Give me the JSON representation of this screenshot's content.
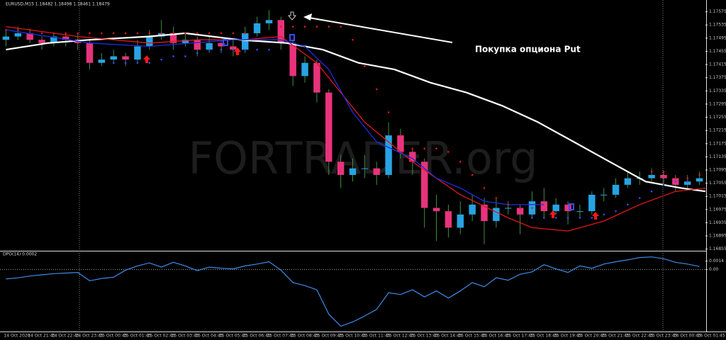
{
  "chart_data": [
    {
      "type": "candlestick",
      "title": "EURUSD,M15  1.18482 1.18498 1.18461 1.18479",
      "watermark": "FORTRADER.org",
      "annotation": "Покупка опциона Put",
      "categories": [
        "14 Oct 2020",
        null,
        "14 Oct 21:45",
        null,
        "14 Oct 22:45",
        null,
        "14 Oct 23:45",
        null,
        "15 Oct 00:45",
        null,
        "15 Oct 01:45",
        null,
        "15 Oct 02:45",
        null,
        "15 Oct 03:45",
        null,
        "15 Oct 04:45",
        null,
        "15 Oct 05:45",
        null,
        "15 Oct 06:45",
        null,
        "15 Oct 07:45",
        null,
        "15 Oct 08:45",
        null,
        "15 Oct 09:45",
        null,
        "15 Oct 10:45",
        null,
        "15 Oct 11:45",
        null,
        "15 Oct 12:45",
        null,
        "15 Oct 13:45",
        null,
        "15 Oct 14:45",
        null,
        "15 Oct 15:45",
        null,
        "15 Oct 16:45",
        null,
        "15 Oct 17:45",
        null,
        "15 Oct 18:45",
        null,
        "15 Oct 19:45",
        null,
        "15 Oct 20:45",
        null,
        "15 Oct 21:45",
        null,
        "15 Oct 22:45",
        null,
        "15 Oct 23:45",
        null,
        "16 Oct 00:45",
        null,
        "16 Oct 01:45"
      ],
      "open": [
        1.1749,
        1.175,
        1.1751,
        1.1749,
        1.1748,
        1.175,
        1.1749,
        1.1748,
        1.1742,
        1.1743,
        1.1744,
        1.1743,
        1.1747,
        1.175,
        1.1751,
        1.1748,
        1.1749,
        1.1746,
        1.1748,
        1.1747,
        1.1746,
        1.1751,
        1.1754,
        1.1755,
        1.1748,
        1.1738,
        1.1742,
        1.1733,
        1.1712,
        1.1708,
        1.171,
        1.171,
        1.1708,
        1.172,
        1.1715,
        1.1712,
        1.1698,
        1.1697,
        1.1692,
        1.1696,
        1.1699,
        1.1694,
        1.1698,
        1.1698,
        1.1696,
        1.17,
        1.1697,
        1.1699,
        1.1697,
        1.1697,
        1.1702,
        1.1702,
        1.1705,
        1.1707,
        1.1707,
        1.1708,
        1.1707,
        1.1705,
        1.1706
      ],
      "high": [
        1.1752,
        1.1753,
        1.1752,
        1.175,
        1.1751,
        1.1751,
        1.1751,
        1.1749,
        1.1745,
        1.1746,
        1.1745,
        1.1749,
        1.1752,
        1.1755,
        1.1753,
        1.1751,
        1.175,
        1.175,
        1.1749,
        1.1749,
        1.1753,
        1.1756,
        1.1758,
        1.1756,
        1.1749,
        1.1744,
        1.1743,
        1.1734,
        1.1714,
        1.1713,
        1.1714,
        1.1712,
        1.1724,
        1.1722,
        1.1716,
        1.1713,
        1.1702,
        1.1699,
        1.17,
        1.1702,
        1.1701,
        1.1701,
        1.17,
        1.1699,
        1.1703,
        1.1704,
        1.1701,
        1.17,
        1.1699,
        1.1703,
        1.1704,
        1.1707,
        1.1709,
        1.1709,
        1.171,
        1.1709,
        1.1708,
        1.1708,
        1.1709
      ],
      "low": [
        1.1747,
        1.1749,
        1.1748,
        1.1746,
        1.1747,
        1.1747,
        1.1746,
        1.174,
        1.1741,
        1.1742,
        1.1741,
        1.1742,
        1.1746,
        1.1749,
        1.1746,
        1.1747,
        1.1744,
        1.1745,
        1.1745,
        1.1744,
        1.1745,
        1.175,
        1.1752,
        1.1746,
        1.1735,
        1.1736,
        1.173,
        1.1708,
        1.1704,
        1.1706,
        1.1707,
        1.1705,
        1.1707,
        1.1713,
        1.1708,
        1.1692,
        1.1688,
        1.1689,
        1.169,
        1.1694,
        1.1687,
        1.1692,
        1.1696,
        1.169,
        1.1695,
        1.1695,
        1.1696,
        1.1693,
        1.1695,
        1.1696,
        1.17,
        1.1701,
        1.1704,
        1.1705,
        1.1706,
        1.1705,
        1.1703,
        1.1704,
        1.1705
      ],
      "close": [
        1.175,
        1.1751,
        1.1749,
        1.1748,
        1.175,
        1.1749,
        1.1748,
        1.1742,
        1.1743,
        1.1744,
        1.1743,
        1.1747,
        1.175,
        1.1751,
        1.1748,
        1.1749,
        1.1746,
        1.1748,
        1.1747,
        1.1746,
        1.1751,
        1.1754,
        1.1755,
        1.1748,
        1.1738,
        1.1742,
        1.1733,
        1.1712,
        1.1708,
        1.171,
        1.171,
        1.1708,
        1.172,
        1.1715,
        1.1712,
        1.1698,
        1.1697,
        1.1692,
        1.1696,
        1.1699,
        1.1694,
        1.1698,
        1.1698,
        1.1696,
        1.17,
        1.1697,
        1.1699,
        1.1697,
        1.1697,
        1.1702,
        1.1702,
        1.1705,
        1.1707,
        1.1707,
        1.1708,
        1.1707,
        1.1705,
        1.1706,
        1.1707
      ],
      "up_color": "#27a3e3",
      "down_color": "#e8337c",
      "wick_color": "#3f8f3f",
      "lines": [
        {
          "color": "#ffffff",
          "x": [
            0,
            3.5,
            7,
            12,
            15,
            19.5,
            23.5,
            26.5,
            29.5,
            32.5,
            35.5,
            38.5,
            41.5,
            44.5,
            47.5,
            50.5,
            53.5,
            56.5,
            58.5
          ],
          "values": [
            1.1746,
            1.1748,
            1.1749,
            1.175,
            1.1751,
            1.1749,
            1.1748,
            1.1746,
            1.1742,
            1.174,
            1.1736,
            1.1733,
            1.1729,
            1.1724,
            1.1718,
            1.1712,
            1.1706,
            1.1704,
            1.1703
          ]
        },
        {
          "color": "#e01818",
          "x": [
            0,
            6,
            12,
            16,
            20,
            23,
            26,
            30,
            34,
            38,
            42,
            44,
            47,
            50,
            53,
            56,
            58.5
          ],
          "values": [
            1.1753,
            1.175,
            1.1748,
            1.1749,
            1.1749,
            1.175,
            1.1742,
            1.1724,
            1.1712,
            1.1702,
            1.1695,
            1.1692,
            1.1691,
            1.1694,
            1.1699,
            1.1703,
            1.1704
          ]
        },
        {
          "color": "#1a2ee0",
          "x": [
            0,
            7,
            12,
            19,
            23,
            25,
            27,
            29,
            31,
            34,
            36,
            38,
            40,
            42,
            44,
            45
          ],
          "values": [
            1.1752,
            1.1748,
            1.1747,
            1.1749,
            1.1749,
            1.1747,
            1.174,
            1.1727,
            1.1718,
            1.1713,
            1.1707,
            1.1704,
            1.17,
            1.1699,
            1.1699,
            1.1699
          ]
        }
      ],
      "dots": [
        {
          "color": "#e01818",
          "values": [
            1.1752,
            1.1752,
            1.1752,
            1.1751,
            1.1751,
            1.1751,
            1.1751,
            1.1751,
            1.1751,
            1.1751,
            1.1751,
            1.1751,
            1.1751,
            1.1751,
            1.1751,
            1.1751,
            1.1751,
            1.1751,
            1.1751,
            1.1751,
            1.1751,
            null,
            null,
            1.1753,
            1.1753,
            1.1753,
            1.1753,
            1.1753,
            1.1753,
            1.1749,
            1.1741,
            1.1734,
            1.1727,
            1.172,
            1.1716,
            1.1716,
            1.1716,
            1.1715,
            1.1712,
            1.1708,
            1.1704,
            1.1701,
            1.1699,
            1.1698,
            1.1698,
            null,
            null,
            null,
            null,
            null,
            null,
            null,
            null,
            null,
            1.1709,
            1.1709,
            1.1707,
            1.1707,
            1.1708
          ]
        },
        {
          "color": "#3b4cf0",
          "values": [
            null,
            null,
            null,
            null,
            null,
            null,
            null,
            null,
            null,
            1.1742,
            1.1742,
            1.1742,
            1.1742,
            1.1743,
            1.1744,
            1.1744,
            1.1745,
            1.1746,
            1.1746,
            1.1746,
            1.1746,
            1.1746,
            1.1746,
            null,
            null,
            null,
            null,
            null,
            null,
            null,
            null,
            null,
            null,
            null,
            null,
            null,
            null,
            null,
            null,
            null,
            null,
            null,
            null,
            null,
            1.1695,
            1.1695,
            1.1695,
            1.1695,
            1.1695,
            1.1695,
            1.1696,
            1.1697,
            1.1699,
            1.1701,
            1.1703,
            1.1705,
            1.1706,
            1.1706,
            null
          ]
        }
      ],
      "xlim": [
        -0.5,
        58.5
      ],
      "ylim": [
        1.1685,
        1.176
      ],
      "yticks": [
        1.16855,
        1.16895,
        1.16935,
        1.16975,
        1.17015,
        1.17055,
        1.17095,
        1.17135,
        1.17175,
        1.17215,
        1.17255,
        1.17295,
        1.17335,
        1.17375,
        1.17415,
        1.17455,
        1.17495,
        1.17535,
        1.17575
      ]
    },
    {
      "type": "line",
      "title": "DPO(14) 0.0002",
      "color": "#3d8be8",
      "values": [
        -0.0016,
        -0.0014,
        -0.0011,
        -0.0009,
        -0.0007,
        -0.0006,
        -0.0005,
        -0.0019,
        -0.0015,
        -0.0013,
        -0.0001,
        0.0006,
        0.0011,
        0.0004,
        0.0012,
        0.0006,
        -0.0002,
        0.0004,
        0.0002,
        0.0001,
        0.0006,
        0.0009,
        0.0013,
        -0.0001,
        -0.0022,
        -0.0027,
        -0.0034,
        -0.0075,
        -0.0095,
        -0.0088,
        -0.0078,
        -0.0067,
        -0.0039,
        -0.0042,
        -0.0034,
        -0.0046,
        -0.0036,
        -0.0048,
        -0.0036,
        -0.0022,
        -0.0029,
        -0.0014,
        -0.0018,
        -0.0008,
        -0.0004,
        0.0008,
        0.0001,
        -0.0005,
        0.0006,
        0.0002,
        0.0009,
        0.0013,
        0.0016,
        0.002,
        0.0021,
        0.0018,
        0.0012,
        0.0009,
        0.0005
      ],
      "ylim": [
        -0.0104,
        0.0029
      ],
      "yticks": [
        0.0014,
        {
          "value": 0,
          "label": "0.00"
        }
      ]
    }
  ]
}
